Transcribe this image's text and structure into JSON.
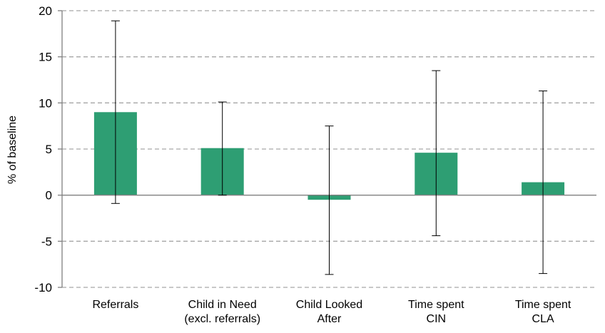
{
  "chart_data": {
    "type": "bar",
    "title": "",
    "xlabel": "",
    "ylabel": "% of baseline",
    "ylim": [
      -10,
      20
    ],
    "yticks": [
      -10,
      -5,
      0,
      5,
      10,
      15,
      20
    ],
    "ytick_labels": [
      "-10",
      "-5",
      "0",
      "5",
      "10",
      "15",
      "20"
    ],
    "grid": true,
    "categories": [
      [
        "Referrals"
      ],
      [
        "Child in Need",
        "(excl. referrals)"
      ],
      [
        "Child Looked",
        "After"
      ],
      [
        "Time spent",
        "CIN"
      ],
      [
        "Time spent",
        "CLA"
      ]
    ],
    "values": [
      9.0,
      5.1,
      -0.5,
      4.6,
      1.4
    ],
    "error_low": [
      -0.9,
      0.0,
      -8.6,
      -4.4,
      -8.5
    ],
    "error_high": [
      18.9,
      10.1,
      7.5,
      13.5,
      11.3
    ],
    "colors": {
      "bar": "#2e9e73",
      "error_bar": "#000000",
      "grid": "#a6a6a6",
      "axis": "#808080"
    }
  }
}
